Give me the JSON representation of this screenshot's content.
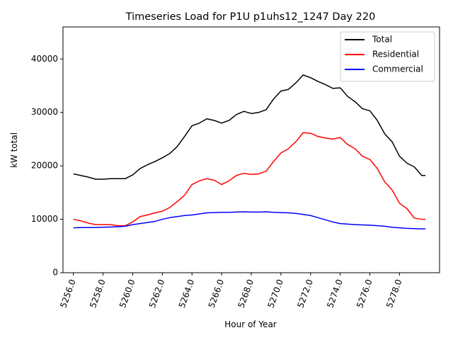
{
  "chart_data": {
    "type": "line",
    "title": "Timeseries Load for P1U p1uhs12_1247  Day 220",
    "xlabel": "Hour of Year",
    "ylabel": "kW total",
    "xlim": [
      5255.3,
      5280.7
    ],
    "ylim": [
      0,
      46000
    ],
    "xticks": [
      5256,
      5258,
      5260,
      5262,
      5264,
      5266,
      5268,
      5270,
      5272,
      5274,
      5276,
      5278
    ],
    "xtick_labels": [
      "5256.0",
      "5258.0",
      "5260.0",
      "5262.0",
      "5264.0",
      "5266.0",
      "5268.0",
      "5270.0",
      "5272.0",
      "5274.0",
      "5276.0",
      "5278.0"
    ],
    "yticks": [
      0,
      10000,
      20000,
      30000,
      40000
    ],
    "ytick_labels": [
      "0",
      "10000",
      "20000",
      "30000",
      "40000"
    ],
    "legend_position": "top-right",
    "series": [
      {
        "name": "Total",
        "color": "#000000",
        "x": [
          5256.0,
          5256.5,
          5257.0,
          5257.5,
          5258.0,
          5258.5,
          5259.0,
          5259.5,
          5260.0,
          5260.5,
          5261.0,
          5261.5,
          5262.0,
          5262.5,
          5263.0,
          5263.5,
          5264.0,
          5264.5,
          5265.0,
          5265.5,
          5266.0,
          5266.5,
          5267.0,
          5267.5,
          5268.0,
          5268.5,
          5269.0,
          5269.5,
          5270.0,
          5270.5,
          5271.0,
          5271.5,
          5272.0,
          5272.5,
          5273.0,
          5273.5,
          5274.0,
          5274.5,
          5275.0,
          5275.5,
          5276.0,
          5276.5,
          5277.0,
          5277.5,
          5278.0,
          5278.5,
          5279.0,
          5279.5,
          5279.75
        ],
        "values": [
          18500,
          18200,
          17900,
          17500,
          17500,
          17600,
          17600,
          17600,
          18300,
          19500,
          20200,
          20800,
          21500,
          22300,
          23600,
          25500,
          27500,
          28000,
          28800,
          28500,
          28000,
          28500,
          29600,
          30200,
          29800,
          30000,
          30500,
          32500,
          34000,
          34300,
          35500,
          37000,
          36500,
          35800,
          35200,
          34500,
          34600,
          33000,
          32000,
          30700,
          30300,
          28500,
          26000,
          24500,
          21800,
          20500,
          19800,
          18200,
          18200
        ]
      },
      {
        "name": "Residential",
        "color": "#ff0000",
        "x": [
          5256.0,
          5256.5,
          5257.0,
          5257.5,
          5258.0,
          5258.5,
          5259.0,
          5259.5,
          5260.0,
          5260.5,
          5261.0,
          5261.5,
          5262.0,
          5262.5,
          5263.0,
          5263.5,
          5264.0,
          5264.5,
          5265.0,
          5265.5,
          5266.0,
          5266.5,
          5267.0,
          5267.5,
          5268.0,
          5268.5,
          5269.0,
          5269.5,
          5270.0,
          5270.5,
          5271.0,
          5271.5,
          5272.0,
          5272.5,
          5273.0,
          5273.5,
          5274.0,
          5274.5,
          5275.0,
          5275.5,
          5276.0,
          5276.5,
          5277.0,
          5277.5,
          5278.0,
          5278.5,
          5279.0,
          5279.5,
          5279.75
        ],
        "values": [
          10000,
          9700,
          9300,
          9000,
          9000,
          9000,
          8800,
          8800,
          9500,
          10500,
          10800,
          11200,
          11500,
          12200,
          13300,
          14500,
          16500,
          17200,
          17600,
          17300,
          16500,
          17200,
          18200,
          18600,
          18400,
          18500,
          19000,
          20800,
          22400,
          23200,
          24500,
          26200,
          26100,
          25500,
          25200,
          25000,
          25300,
          24000,
          23200,
          21800,
          21200,
          19500,
          17000,
          15500,
          13000,
          12000,
          10200,
          10000,
          10000
        ]
      },
      {
        "name": "Commercial",
        "color": "#0000ff",
        "x": [
          5256.0,
          5256.5,
          5257.0,
          5257.5,
          5258.0,
          5258.5,
          5259.0,
          5259.5,
          5260.0,
          5260.5,
          5261.0,
          5261.5,
          5262.0,
          5262.5,
          5263.0,
          5263.5,
          5264.0,
          5264.5,
          5265.0,
          5265.5,
          5266.0,
          5266.5,
          5267.0,
          5267.5,
          5268.0,
          5268.5,
          5269.0,
          5269.5,
          5270.0,
          5270.5,
          5271.0,
          5271.5,
          5272.0,
          5272.5,
          5273.0,
          5273.5,
          5274.0,
          5274.5,
          5275.0,
          5275.5,
          5276.0,
          5276.5,
          5277.0,
          5277.5,
          5278.0,
          5278.5,
          5279.0,
          5279.5,
          5279.75
        ],
        "values": [
          8400,
          8450,
          8450,
          8450,
          8500,
          8550,
          8600,
          8700,
          9000,
          9200,
          9400,
          9600,
          10000,
          10300,
          10500,
          10700,
          10800,
          11000,
          11200,
          11250,
          11300,
          11300,
          11350,
          11400,
          11350,
          11350,
          11400,
          11300,
          11250,
          11200,
          11100,
          10900,
          10700,
          10300,
          9900,
          9500,
          9200,
          9100,
          9000,
          8950,
          8900,
          8800,
          8700,
          8500,
          8400,
          8300,
          8250,
          8200,
          8200
        ]
      }
    ]
  }
}
